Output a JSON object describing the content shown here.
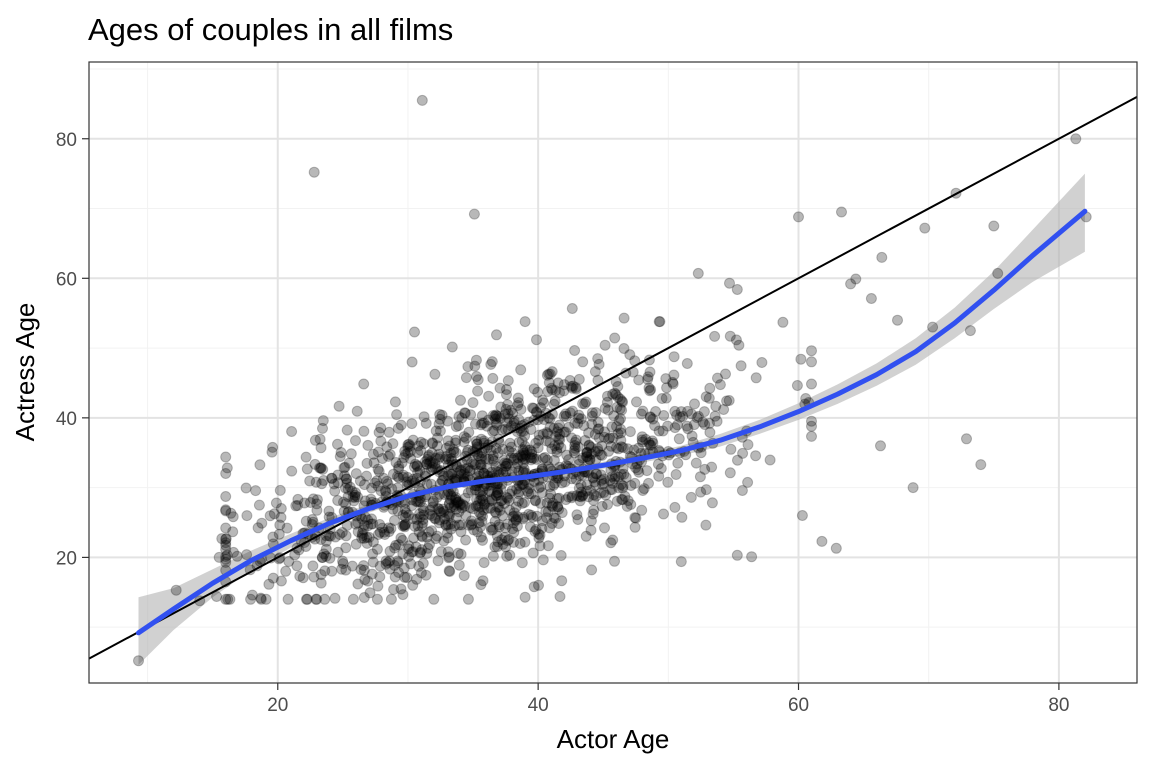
{
  "chart_data": {
    "type": "scatter",
    "title": "Ages of couples in all films",
    "xlabel": "Actor Age",
    "ylabel": "Actress Age",
    "xlim": [
      5.5,
      86
    ],
    "ylim": [
      2,
      91
    ],
    "x_ticks": [
      20,
      40,
      60,
      80
    ],
    "y_ticks": [
      20,
      40,
      60,
      80
    ],
    "x_tick_labels": [
      "20",
      "40",
      "60",
      "80"
    ],
    "y_tick_labels": [
      "20",
      "40",
      "60",
      "80"
    ],
    "grid": true,
    "theme": "bw",
    "colors": {
      "points": "#000000",
      "point_alpha": 0.28,
      "smooth_line": "#3150f0",
      "confidence_band": "#b3b3b3",
      "reference_line": "#000000",
      "grid_major": "#e3e3e3",
      "grid_minor": "#f2f2f2",
      "panel_border": "#333333"
    },
    "reference_line": {
      "slope": 1,
      "intercept": 0,
      "label": ""
    },
    "smooth": {
      "method": "loess",
      "x": [
        9.3,
        12,
        15,
        18,
        21,
        24,
        27,
        30,
        33,
        36,
        39,
        42,
        45,
        48,
        51,
        54,
        57,
        60,
        63,
        66,
        69,
        72,
        75,
        78,
        82
      ],
      "y": [
        9.2,
        12.6,
        16.3,
        19.6,
        22.4,
        24.9,
        27.0,
        28.8,
        30.1,
        31.0,
        31.5,
        32.3,
        33.2,
        34.2,
        35.3,
        36.8,
        38.7,
        40.9,
        43.4,
        46.2,
        49.5,
        53.6,
        58.3,
        63.3,
        69.6
      ],
      "lower": [
        4.6,
        9.6,
        14.3,
        18.2,
        21.4,
        24.1,
        26.4,
        28.3,
        29.7,
        30.7,
        31.1,
        31.9,
        32.7,
        33.6,
        34.6,
        35.9,
        37.7,
        39.7,
        42.0,
        44.6,
        47.6,
        51.4,
        55.6,
        59.5,
        63.8
      ],
      "upper": [
        14.3,
        15.6,
        18.3,
        21.0,
        23.4,
        25.7,
        27.6,
        29.3,
        30.5,
        31.3,
        31.9,
        32.7,
        33.7,
        34.8,
        36.0,
        37.7,
        39.7,
        42.1,
        44.8,
        47.8,
        51.4,
        55.8,
        61.0,
        67.0,
        75.0
      ]
    },
    "outliers": [
      {
        "x": 9.3,
        "y": 5.2
      },
      {
        "x": 31.1,
        "y": 85.5
      },
      {
        "x": 22.8,
        "y": 75.2
      },
      {
        "x": 35.1,
        "y": 69.2
      },
      {
        "x": 81.3,
        "y": 80.0
      },
      {
        "x": 82.1,
        "y": 68.8
      },
      {
        "x": 72.1,
        "y": 72.2
      },
      {
        "x": 63.3,
        "y": 69.5
      },
      {
        "x": 60.0,
        "y": 68.8
      },
      {
        "x": 69.7,
        "y": 67.2
      },
      {
        "x": 75.0,
        "y": 67.5
      },
      {
        "x": 75.3,
        "y": 60.7
      },
      {
        "x": 52.3,
        "y": 60.7
      },
      {
        "x": 66.4,
        "y": 63.0
      },
      {
        "x": 64.4,
        "y": 59.9
      },
      {
        "x": 64.0,
        "y": 59.2
      },
      {
        "x": 65.6,
        "y": 57.1
      },
      {
        "x": 54.7,
        "y": 59.3
      },
      {
        "x": 55.3,
        "y": 58.4
      },
      {
        "x": 70.3,
        "y": 53.0
      },
      {
        "x": 73.2,
        "y": 52.5
      },
      {
        "x": 67.6,
        "y": 54.0
      },
      {
        "x": 72.9,
        "y": 37.0
      },
      {
        "x": 74.0,
        "y": 33.3
      },
      {
        "x": 68.8,
        "y": 30.0
      },
      {
        "x": 66.3,
        "y": 36.0
      },
      {
        "x": 62.9,
        "y": 21.3
      },
      {
        "x": 61.8,
        "y": 22.3
      },
      {
        "x": 12.2,
        "y": 15.3
      },
      {
        "x": 14.0,
        "y": 13.8
      },
      {
        "x": 15.3,
        "y": 14.4
      },
      {
        "x": 15.7,
        "y": 22.7
      },
      {
        "x": 15.5,
        "y": 20.0
      },
      {
        "x": 39.0,
        "y": 14.3
      },
      {
        "x": 39.7,
        "y": 15.8
      },
      {
        "x": 28.9,
        "y": 15.4
      },
      {
        "x": 30.5,
        "y": 52.3
      },
      {
        "x": 39.0,
        "y": 53.8
      },
      {
        "x": 36.8,
        "y": 51.9
      },
      {
        "x": 46.6,
        "y": 54.3
      },
      {
        "x": 49.3,
        "y": 53.8
      },
      {
        "x": 51.0,
        "y": 19.4
      },
      {
        "x": 55.3,
        "y": 20.3
      },
      {
        "x": 56.4,
        "y": 20.1
      },
      {
        "x": 58.8,
        "y": 53.7
      },
      {
        "x": 60.3,
        "y": 26.0
      }
    ],
    "cloud": {
      "n": 1430,
      "x_mean": 36.5,
      "x_sd": 9.2,
      "x_min": 16,
      "x_max": 61,
      "y_intercept": 14.4,
      "y_slope": 0.47,
      "y_sd": 6.4,
      "y_min": 14,
      "y_max": 56
    }
  }
}
